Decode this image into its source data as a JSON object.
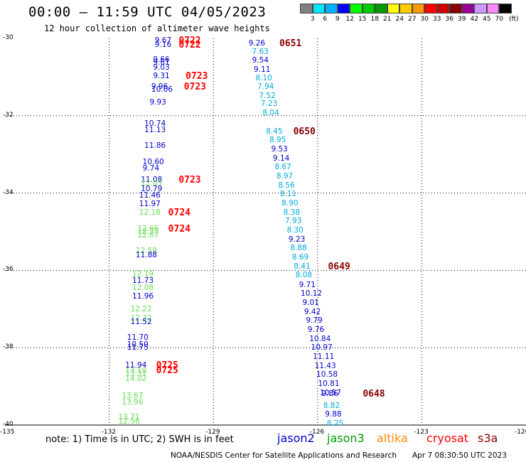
{
  "header": {
    "title": "00:00 — 11:59 UTC 04/05/2023",
    "subtitle": "12 hour collection of altimeter wave heights"
  },
  "colorbar": {
    "unit": "(ft)",
    "labels": [
      "3",
      "6",
      "9",
      "12",
      "15",
      "18",
      "21",
      "24",
      "27",
      "30",
      "33",
      "36",
      "39",
      "42",
      "45",
      "70"
    ],
    "colors": [
      "#808080",
      "#00e8ff",
      "#00b0ff",
      "#0000ff",
      "#00ff00",
      "#00cc00",
      "#009900",
      "#ffff00",
      "#ffcc00",
      "#ff9900",
      "#ff0000",
      "#cc0000",
      "#880000",
      "#990099",
      "#cc99ff",
      "#ff88ff",
      "#000000"
    ]
  },
  "footer": {
    "note": "note:  1) Time is in UTC;  2) SWH is in feet",
    "legend": [
      {
        "name": "jason2",
        "color": "#0000cc"
      },
      {
        "name": "jason3",
        "color": "#009900"
      },
      {
        "name": "altika",
        "color": "#ff8800"
      },
      {
        "name": "cryosat",
        "color": "#ff0000"
      },
      {
        "name": "s3a",
        "color": "#880000"
      }
    ],
    "credit": "NOAA/NESDIS Center for Satellite Applications and Research",
    "timestamp": "Apr  7 08:30:50 UTC 2023"
  },
  "chart_data": {
    "type": "scatter",
    "xlim": [
      -135,
      -120
    ],
    "ylim": [
      -40,
      -30
    ],
    "xticks": [
      "-135",
      "-132",
      "-129",
      "-126",
      "-123",
      "-120"
    ],
    "yticks": [
      "-30",
      "-32",
      "-34",
      "-36",
      "-38",
      "-40"
    ],
    "grid": true,
    "points": [
      {
        "x": -130.4,
        "y": -30.05,
        "v": "9.67",
        "c": "#0000cc"
      },
      {
        "x": -130.4,
        "y": -30.16,
        "v": "9.16",
        "c": "#0000cc"
      },
      {
        "x": -130.45,
        "y": -30.55,
        "v": "9.66",
        "c": "#0000cc"
      },
      {
        "x": -130.45,
        "y": -30.63,
        "v": "9.61",
        "c": "#0000cc"
      },
      {
        "x": -130.45,
        "y": -30.75,
        "v": "9.03",
        "c": "#0000cc"
      },
      {
        "x": -130.45,
        "y": -30.97,
        "v": "9.31",
        "c": "#0000cc"
      },
      {
        "x": -130.5,
        "y": -31.25,
        "v": "9.96",
        "c": "#0000cc"
      },
      {
        "x": -130.5,
        "y": -31.33,
        "v": "10.06",
        "c": "#0000cc"
      },
      {
        "x": -130.55,
        "y": -31.65,
        "v": "9.93",
        "c": "#0000cc"
      },
      {
        "x": -130.7,
        "y": -32.2,
        "v": "10.74",
        "c": "#0000cc"
      },
      {
        "x": -130.7,
        "y": -32.37,
        "v": "11.13",
        "c": "#0000cc"
      },
      {
        "x": -130.7,
        "y": -32.78,
        "v": "11.86",
        "c": "#0000cc"
      },
      {
        "x": -130.75,
        "y": -33.2,
        "v": "10.60",
        "c": "#0000cc"
      },
      {
        "x": -130.75,
        "y": -33.37,
        "v": "9.74",
        "c": "#0000cc"
      },
      {
        "x": -130.8,
        "y": -33.65,
        "v": "11.08",
        "c": "#0000cc"
      },
      {
        "x": -130.8,
        "y": -33.75,
        "v": "12.03",
        "c": "#66dd55"
      },
      {
        "x": -130.8,
        "y": -33.9,
        "v": "10.79",
        "c": "#0000cc"
      },
      {
        "x": -130.85,
        "y": -34.07,
        "v": "11.46",
        "c": "#0000cc"
      },
      {
        "x": -130.85,
        "y": -34.28,
        "v": "11.97",
        "c": "#0000cc"
      },
      {
        "x": -130.85,
        "y": -34.5,
        "v": "12.18",
        "c": "#66dd55"
      },
      {
        "x": -130.9,
        "y": -34.92,
        "v": "12.66",
        "c": "#66dd55"
      },
      {
        "x": -130.9,
        "y": -35.0,
        "v": "12.35",
        "c": "#66dd55"
      },
      {
        "x": -130.9,
        "y": -35.1,
        "v": "12.67",
        "c": "#66dd55"
      },
      {
        "x": -130.95,
        "y": -35.5,
        "v": "12.59",
        "c": "#66dd55"
      },
      {
        "x": -130.95,
        "y": -35.6,
        "v": "11.88",
        "c": "#0000cc"
      },
      {
        "x": -131.05,
        "y": -36.1,
        "v": "12.19",
        "c": "#66dd55"
      },
      {
        "x": -131.05,
        "y": -36.27,
        "v": "11.73",
        "c": "#0000cc"
      },
      {
        "x": -131.05,
        "y": -36.45,
        "v": "12.08",
        "c": "#66dd55"
      },
      {
        "x": -131.05,
        "y": -36.67,
        "v": "11.96",
        "c": "#0000cc"
      },
      {
        "x": -131.1,
        "y": -37.0,
        "v": "12.22",
        "c": "#66dd55"
      },
      {
        "x": -131.1,
        "y": -37.25,
        "v": "12.32",
        "c": "#66dd55"
      },
      {
        "x": -131.1,
        "y": -37.33,
        "v": "11.52",
        "c": "#0000cc"
      },
      {
        "x": -131.2,
        "y": -37.73,
        "v": "11.70",
        "c": "#0000cc"
      },
      {
        "x": -131.2,
        "y": -37.92,
        "v": "10.50",
        "c": "#0000cc"
      },
      {
        "x": -131.2,
        "y": -38.0,
        "v": "11.75",
        "c": "#0000cc"
      },
      {
        "x": -131.25,
        "y": -38.45,
        "v": "11.94",
        "c": "#0000cc"
      },
      {
        "x": -131.25,
        "y": -38.6,
        "v": "13.19",
        "c": "#66dd55"
      },
      {
        "x": -131.25,
        "y": -38.67,
        "v": "13.31",
        "c": "#66dd55"
      },
      {
        "x": -131.25,
        "y": -38.8,
        "v": "14.02",
        "c": "#66dd55"
      },
      {
        "x": -131.35,
        "y": -39.25,
        "v": "13.67",
        "c": "#66dd55"
      },
      {
        "x": -131.35,
        "y": -39.42,
        "v": "13.96",
        "c": "#66dd55"
      },
      {
        "x": -131.45,
        "y": -39.8,
        "v": "13.71",
        "c": "#66dd55"
      },
      {
        "x": -131.45,
        "y": -39.9,
        "v": "12.56",
        "c": "#66dd55"
      },
      {
        "x": -127.7,
        "y": -30.12,
        "v": "9.26",
        "c": "#0000cc"
      },
      {
        "x": -127.6,
        "y": -30.35,
        "v": "7.63",
        "c": "#00aadd"
      },
      {
        "x": -127.6,
        "y": -30.57,
        "v": "9.54",
        "c": "#0000cc"
      },
      {
        "x": -127.55,
        "y": -30.8,
        "v": "9.11",
        "c": "#0000cc"
      },
      {
        "x": -127.5,
        "y": -31.03,
        "v": "8.10",
        "c": "#00aadd"
      },
      {
        "x": -127.45,
        "y": -31.25,
        "v": "7.94",
        "c": "#00aadd"
      },
      {
        "x": -127.4,
        "y": -31.48,
        "v": "7.52",
        "c": "#00aadd"
      },
      {
        "x": -127.35,
        "y": -31.7,
        "v": "7.23",
        "c": "#00aadd"
      },
      {
        "x": -127.3,
        "y": -31.93,
        "v": "8.04",
        "c": "#00aadd"
      },
      {
        "x": -127.2,
        "y": -32.4,
        "v": "8.45",
        "c": "#00aadd"
      },
      {
        "x": -127.1,
        "y": -32.63,
        "v": "8.95",
        "c": "#00aadd"
      },
      {
        "x": -127.05,
        "y": -32.87,
        "v": "9.53",
        "c": "#0000cc"
      },
      {
        "x": -127.0,
        "y": -33.1,
        "v": "9.14",
        "c": "#0000cc"
      },
      {
        "x": -126.95,
        "y": -33.33,
        "v": "8.67",
        "c": "#00aadd"
      },
      {
        "x": -126.9,
        "y": -33.57,
        "v": "8.97",
        "c": "#00aadd"
      },
      {
        "x": -126.85,
        "y": -33.8,
        "v": "8.56",
        "c": "#00aadd"
      },
      {
        "x": -126.8,
        "y": -34.03,
        "v": "8.11",
        "c": "#00aadd"
      },
      {
        "x": -126.75,
        "y": -34.27,
        "v": "8.90",
        "c": "#00aadd"
      },
      {
        "x": -126.7,
        "y": -34.5,
        "v": "8.38",
        "c": "#00aadd"
      },
      {
        "x": -126.65,
        "y": -34.73,
        "v": "7.93",
        "c": "#00aadd"
      },
      {
        "x": -126.6,
        "y": -34.97,
        "v": "8.30",
        "c": "#00aadd"
      },
      {
        "x": -126.55,
        "y": -35.2,
        "v": "9.23",
        "c": "#0000cc"
      },
      {
        "x": -126.5,
        "y": -35.43,
        "v": "8.88",
        "c": "#00aadd"
      },
      {
        "x": -126.45,
        "y": -35.67,
        "v": "8.69",
        "c": "#00aadd"
      },
      {
        "x": -126.4,
        "y": -35.9,
        "v": "8.41",
        "c": "#00aadd"
      },
      {
        "x": -126.35,
        "y": -36.13,
        "v": "8.08",
        "c": "#00aadd"
      },
      {
        "x": -126.25,
        "y": -36.37,
        "v": "9.71",
        "c": "#0000cc"
      },
      {
        "x": -126.2,
        "y": -36.6,
        "v": "10.12",
        "c": "#0000cc"
      },
      {
        "x": -126.15,
        "y": -36.83,
        "v": "9.01",
        "c": "#0000cc"
      },
      {
        "x": -126.1,
        "y": -37.07,
        "v": "9.42",
        "c": "#0000cc"
      },
      {
        "x": -126.05,
        "y": -37.3,
        "v": "9.79",
        "c": "#0000cc"
      },
      {
        "x": -126.0,
        "y": -37.53,
        "v": "9.76",
        "c": "#0000cc"
      },
      {
        "x": -125.95,
        "y": -37.77,
        "v": "10.84",
        "c": "#0000cc"
      },
      {
        "x": -125.9,
        "y": -38.0,
        "v": "10.97",
        "c": "#0000cc"
      },
      {
        "x": -125.85,
        "y": -38.23,
        "v": "11.11",
        "c": "#0000cc"
      },
      {
        "x": -125.8,
        "y": -38.47,
        "v": "11.43",
        "c": "#0000cc"
      },
      {
        "x": -125.75,
        "y": -38.7,
        "v": "10.58",
        "c": "#0000cc"
      },
      {
        "x": -125.7,
        "y": -38.93,
        "v": "10.81",
        "c": "#0000cc"
      },
      {
        "x": -125.65,
        "y": -39.17,
        "v": "10.57",
        "c": "#0000cc"
      },
      {
        "x": -125.6,
        "y": -39.2,
        "v": "9.86",
        "c": "#0000cc"
      },
      {
        "x": -125.55,
        "y": -39.5,
        "v": "8.82",
        "c": "#00aadd"
      },
      {
        "x": -125.5,
        "y": -39.73,
        "v": "9.88",
        "c": "#0000cc"
      },
      {
        "x": -125.45,
        "y": -39.97,
        "v": "8.25",
        "c": "#00aadd"
      }
    ],
    "time_labels": [
      {
        "x": -130.0,
        "y": -30.05,
        "t": "0722",
        "c": "#ff0000"
      },
      {
        "x": -130.0,
        "y": -30.16,
        "t": "0722",
        "c": "#ff0000"
      },
      {
        "x": -129.8,
        "y": -30.97,
        "t": "0723",
        "c": "#ff0000"
      },
      {
        "x": -129.85,
        "y": -31.25,
        "t": "0723",
        "c": "#ff0000"
      },
      {
        "x": -130.0,
        "y": -33.65,
        "t": "0723",
        "c": "#ff0000"
      },
      {
        "x": -130.3,
        "y": -34.5,
        "t": "0724",
        "c": "#ff0000"
      },
      {
        "x": -130.3,
        "y": -34.92,
        "t": "0724",
        "c": "#ff0000"
      },
      {
        "x": -130.65,
        "y": -38.45,
        "t": "0725",
        "c": "#ff0000"
      },
      {
        "x": -130.65,
        "y": -38.58,
        "t": "0725",
        "c": "#ff0000"
      },
      {
        "x": -127.1,
        "y": -30.12,
        "t": "0651",
        "c": "#880000"
      },
      {
        "x": -126.7,
        "y": -32.4,
        "t": "0650",
        "c": "#880000"
      },
      {
        "x": -125.7,
        "y": -35.9,
        "t": "0649",
        "c": "#880000"
      },
      {
        "x": -124.7,
        "y": -39.2,
        "t": "0648",
        "c": "#880000"
      }
    ]
  }
}
